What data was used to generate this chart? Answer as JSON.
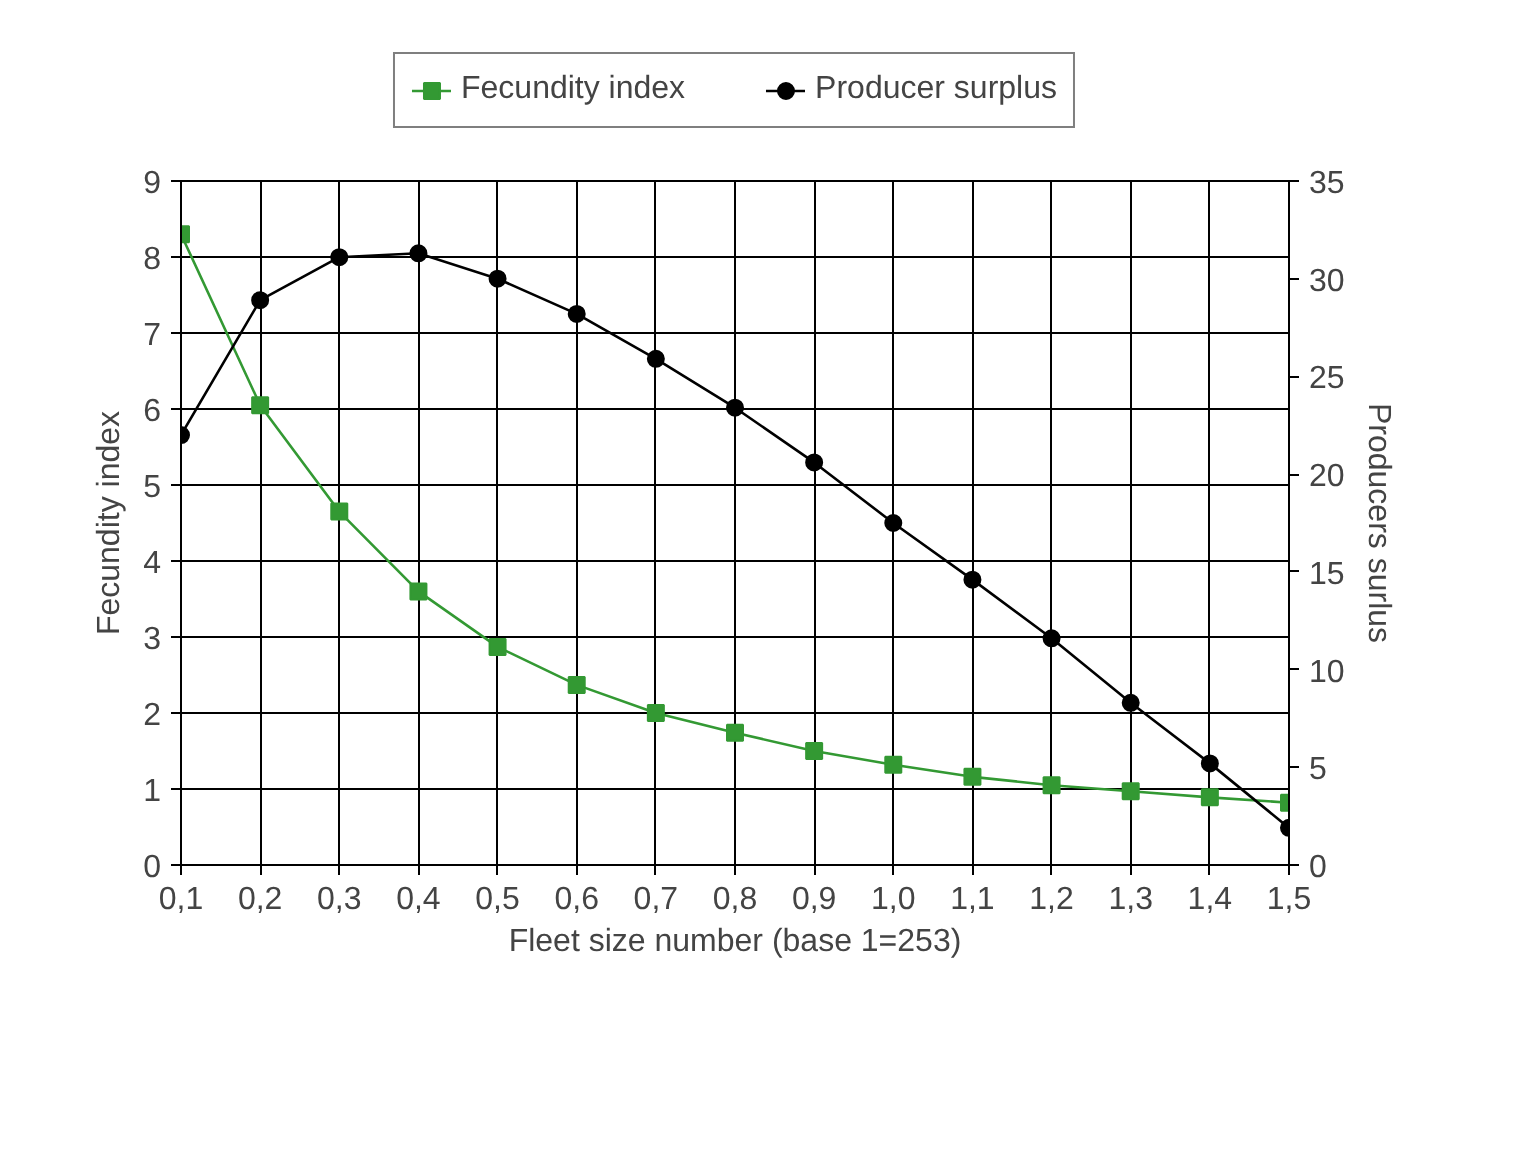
{
  "chart_data": {
    "type": "line",
    "xlabel": "Fleet size number (base 1=253)",
    "ylabel": "Fecundity index",
    "y2label": "Producers surlus",
    "categories": [
      "0,1",
      "0,2",
      "0,3",
      "0,4",
      "0,5",
      "0,6",
      "0,7",
      "0,8",
      "0,9",
      "1,0",
      "1,1",
      "1,2",
      "1,3",
      "1,4",
      "1,5"
    ],
    "series": [
      {
        "name": "Fecundity index",
        "color": "#339933",
        "marker": "square",
        "values": [
          8.3,
          6.05,
          4.65,
          3.6,
          2.87,
          2.37,
          2.0,
          1.74,
          1.5,
          1.32,
          1.16,
          1.05,
          0.97,
          0.89,
          0.82
        ]
      },
      {
        "name": "Producer surplus",
        "color": "#000000",
        "marker": "circle",
        "axis": "y2",
        "values": [
          22.0,
          28.9,
          31.1,
          31.3,
          30.0,
          28.2,
          25.9,
          23.4,
          20.6,
          17.5,
          14.6,
          11.6,
          8.3,
          5.2,
          1.9
        ]
      }
    ],
    "ylim": [
      0,
      9
    ],
    "yticks": [
      0,
      1,
      2,
      3,
      4,
      5,
      6,
      7,
      8,
      9
    ],
    "y2lim": [
      0,
      35
    ],
    "y2ticks": [
      0,
      5,
      10,
      15,
      20,
      25,
      30,
      35
    ],
    "grid": true,
    "legend": "top",
    "line_style": "solid"
  }
}
